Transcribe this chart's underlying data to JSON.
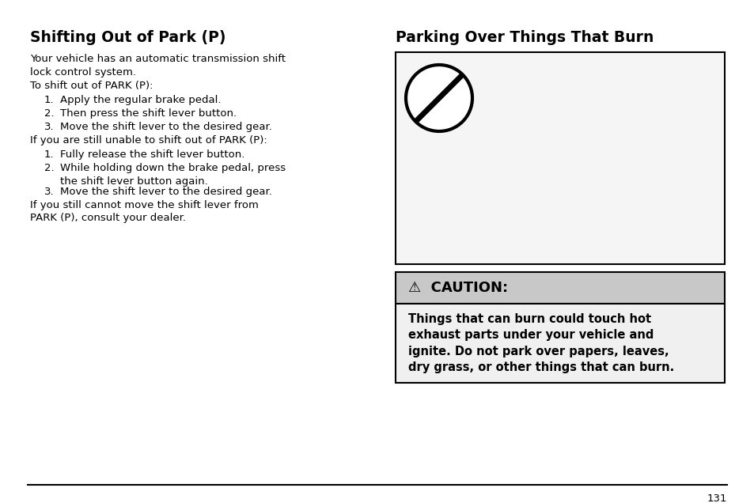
{
  "title_left": "Shifting Out of Park (P)",
  "title_right": "Parking Over Things That Burn",
  "left_paragraphs": [
    {
      "type": "body",
      "text": "Your vehicle has an automatic transmission shift\nlock control system."
    },
    {
      "type": "body",
      "text": "To shift out of PARK (P):"
    },
    {
      "type": "item",
      "num": "1.",
      "text": "Apply the regular brake pedal."
    },
    {
      "type": "item",
      "num": "2.",
      "text": "Then press the shift lever button."
    },
    {
      "type": "item",
      "num": "3.",
      "text": "Move the shift lever to the desired gear."
    },
    {
      "type": "body",
      "text": "If you are still unable to shift out of PARK (P):"
    },
    {
      "type": "item",
      "num": "1.",
      "text": "Fully release the shift lever button."
    },
    {
      "type": "item2",
      "num": "2.",
      "text": "While holding down the brake pedal, press\nthe shift lever button again."
    },
    {
      "type": "item",
      "num": "3.",
      "text": "Move the shift lever to the desired gear."
    },
    {
      "type": "body",
      "text": "If you still cannot move the shift lever from\nPARK (P), consult your dealer."
    }
  ],
  "caution_header": "⚠  CAUTION:",
  "caution_body": "Things that can burn could touch hot\nexhaust parts under your vehicle and\nignite. Do not park over papers, leaves,\ndry grass, or other things that can burn.",
  "page_number": "131",
  "bg_color": "#ffffff",
  "caution_header_bg": "#c8c8c8",
  "caution_body_bg": "#f0f0f0",
  "image_border_color": "#000000",
  "text_color": "#000000",
  "title_fontsize": 13.5,
  "body_fontsize": 9.5,
  "caution_header_fontsize": 13,
  "caution_body_fontsize": 10.5
}
